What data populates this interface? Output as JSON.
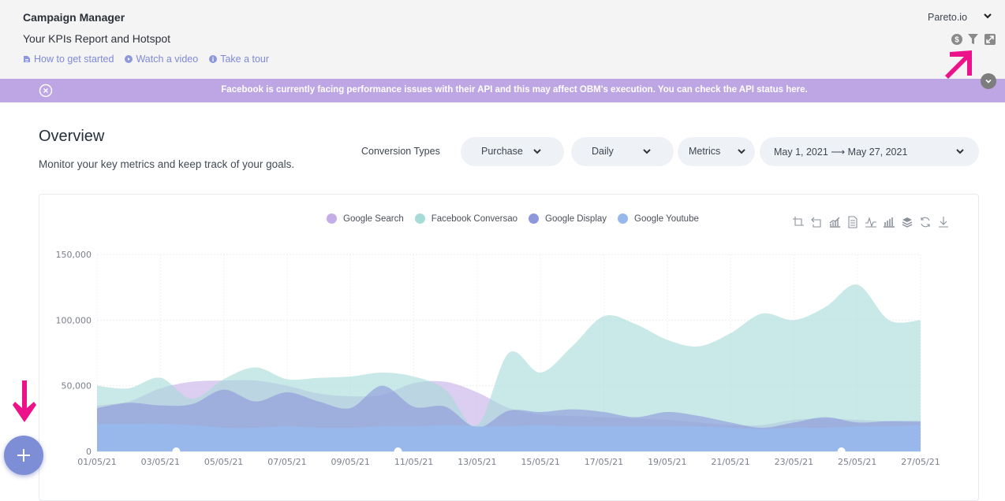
{
  "header": {
    "title": "Campaign Manager",
    "subtitle": "Your KPIs Report and Hotspot",
    "links": [
      {
        "label": "How to get started",
        "icon": "document-icon"
      },
      {
        "label": "Watch a video",
        "icon": "play-icon"
      },
      {
        "label": "Take a tour",
        "icon": "info-icon"
      }
    ],
    "org_name": "Pareto.io",
    "icons": [
      "dollar-icon",
      "funnel-icon",
      "expand-icon"
    ]
  },
  "banner": {
    "text": "Facebook is currently facing performance issues with their API and this may affect OBM's execution. You can check the API status here.",
    "color": "#bea6e4"
  },
  "overview": {
    "title": "Overview",
    "subtitle": "Monitor your key metrics and keep track of your goals.",
    "filters": {
      "conversion_label": "Conversion Types",
      "conversion_value": "Purchase",
      "granularity": "Daily",
      "metrics": "Metrics",
      "date_range": "May 1, 2021 ⟶ May 27, 2021"
    }
  },
  "toolbox": [
    "zoom-icon",
    "zoom-reset-icon",
    "line-bar-icon",
    "data-view-icon",
    "line-chart-icon",
    "bar-chart-icon",
    "stack-icon",
    "restore-icon",
    "download-icon"
  ],
  "chart_data": {
    "type": "area",
    "title": "",
    "xlabel": "",
    "ylabel": "",
    "ylim": [
      0,
      150000
    ],
    "yticks": [
      0,
      50000,
      100000,
      150000
    ],
    "ytick_labels": [
      "0",
      "50,000",
      "100,000",
      "150,000"
    ],
    "grid": true,
    "legend_position": "top-center",
    "x": [
      "01/05/21",
      "02/05/21",
      "03/05/21",
      "04/05/21",
      "05/05/21",
      "06/05/21",
      "07/05/21",
      "08/05/21",
      "09/05/21",
      "10/05/21",
      "11/05/21",
      "12/05/21",
      "13/05/21",
      "14/05/21",
      "15/05/21",
      "16/05/21",
      "17/05/21",
      "18/05/21",
      "19/05/21",
      "20/05/21",
      "21/05/21",
      "22/05/21",
      "23/05/21",
      "24/05/21",
      "25/05/21",
      "26/05/21",
      "27/05/21"
    ],
    "xtick_labels": [
      "01/05/21",
      "03/05/21",
      "05/05/21",
      "07/05/21",
      "09/05/21",
      "11/05/21",
      "13/05/21",
      "15/05/21",
      "17/05/21",
      "19/05/21",
      "21/05/21",
      "23/05/21",
      "25/05/21",
      "27/05/21"
    ],
    "series": [
      {
        "name": "Google Search",
        "color": "#c5aee8",
        "values": [
          35000,
          38000,
          48000,
          53000,
          54000,
          54000,
          50000,
          44000,
          42000,
          43000,
          52000,
          53000,
          45000,
          33000,
          28000,
          27000,
          26000,
          25000,
          24000,
          22000,
          20000,
          20000,
          24000,
          25000,
          24000,
          23000,
          22000
        ]
      },
      {
        "name": "Facebook Conversao",
        "color": "#a6dbd9",
        "values": [
          50000,
          48000,
          56000,
          40000,
          55000,
          64000,
          55000,
          56000,
          57000,
          60000,
          57000,
          47000,
          20000,
          75000,
          60000,
          80000,
          103000,
          97000,
          85000,
          80000,
          90000,
          105000,
          100000,
          110000,
          127000,
          100000,
          100000
        ]
      },
      {
        "name": "Google Display",
        "color": "#8d98dc",
        "values": [
          33000,
          37000,
          35000,
          36000,
          47000,
          38000,
          45000,
          38000,
          33000,
          50000,
          34000,
          34000,
          18000,
          31000,
          30000,
          32000,
          30000,
          26000,
          30000,
          27000,
          22000,
          18000,
          22000,
          26000,
          22000,
          23000,
          23000
        ]
      },
      {
        "name": "Google Youtube",
        "color": "#98b8ec",
        "values": [
          21000,
          21000,
          21000,
          20000,
          18000,
          18000,
          19000,
          18000,
          18000,
          19000,
          19000,
          20000,
          19000,
          19000,
          20000,
          19000,
          19000,
          19000,
          19000,
          19000,
          18000,
          17000,
          18000,
          18000,
          19000,
          19000,
          20000
        ]
      }
    ]
  }
}
